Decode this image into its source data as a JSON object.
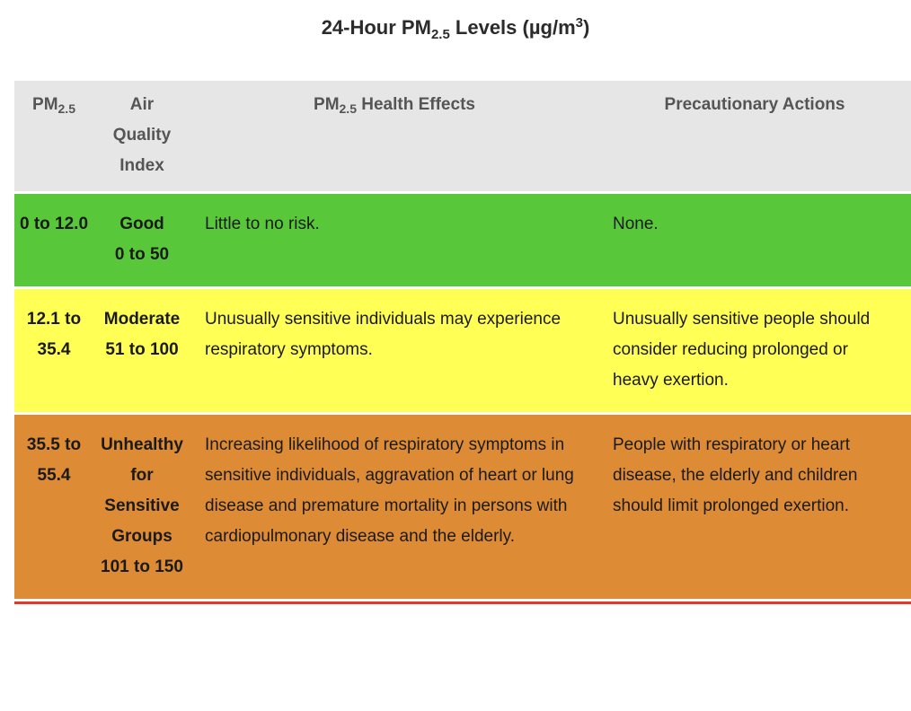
{
  "title": {
    "prefix": "24-Hour PM",
    "sub": "2.5",
    "middle": " Levels (µg/m",
    "sup": "3",
    "suffix": ")"
  },
  "header": {
    "pm_label": "PM",
    "pm_sub": "2.5",
    "aqi_label": "Air Quality Index",
    "effects_label": "PM",
    "effects_sub": "2.5",
    "effects_suffix": " Health Effects",
    "actions_label": "Precautionary Actions"
  },
  "rows": [
    {
      "range": "0 to 12.0",
      "category": "Good",
      "index": "0 to 50",
      "effects": "Little to no risk.",
      "actions": "None.",
      "color": "#58c83a"
    },
    {
      "range": "12.1 to 35.4",
      "category": "Moderate",
      "index": "51 to 100",
      "effects": "Unusually sensitive individuals may experience respiratory symptoms.",
      "actions": "Unusually sensitive people should consider reducing prolonged or heavy exertion.",
      "color": "#ffff55"
    },
    {
      "range": "35.5 to 55.4",
      "category": "Unhealthy for Sensitive Groups",
      "index": "101 to 150",
      "effects": "Increasing likelihood of respiratory symptoms in sensitive individuals, aggravation of heart or lung disease and premature mortality in persons with cardiopulmonary disease and the elderly.",
      "actions": "People with respiratory or heart disease, the elderly and children should limit prolonged exertion.",
      "color": "#de8b35"
    }
  ]
}
